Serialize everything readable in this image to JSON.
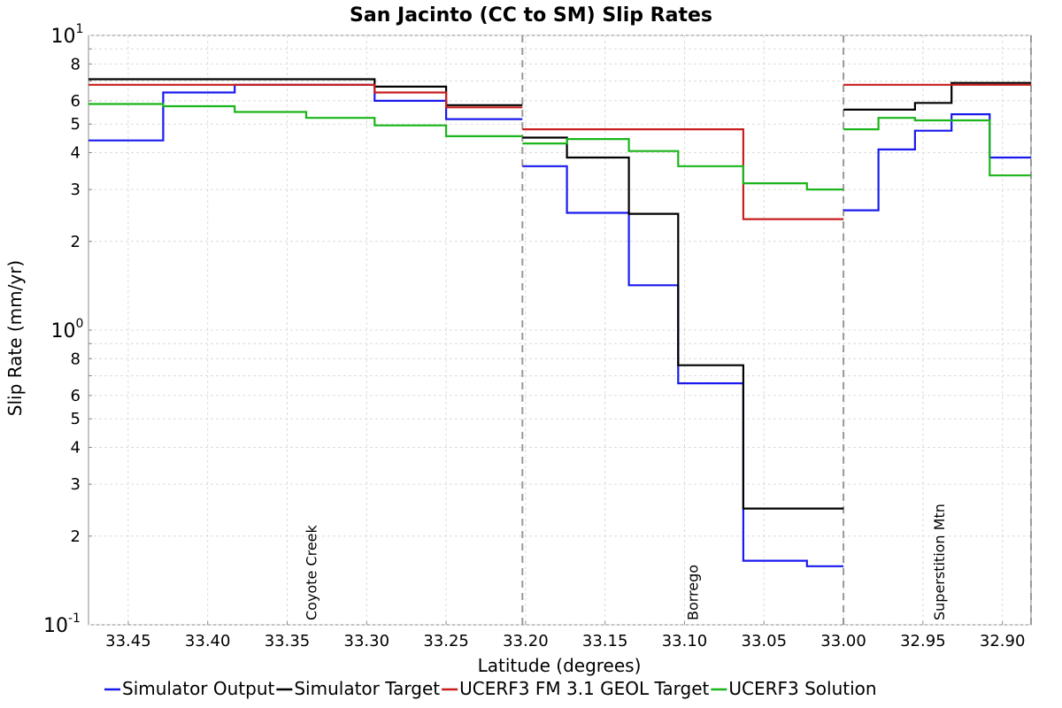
{
  "chart_data": {
    "type": "line",
    "title": "San Jacinto (CC to SM) Slip Rates",
    "xlabel": "Latitude (degrees)",
    "ylabel": "Slip Rate (mm/yr)",
    "x_reversed": true,
    "xlim": [
      33.475,
      32.882
    ],
    "ylim": [
      0.1,
      10
    ],
    "y_scale": "log",
    "grid": true,
    "legend_position": "bottom",
    "x_ticks": [
      "33.45",
      "33.40",
      "33.35",
      "33.30",
      "33.25",
      "33.20",
      "33.15",
      "33.10",
      "33.05",
      "33.00",
      "32.95",
      "32.90"
    ],
    "y_minor_tick_labels": [
      "8",
      "6",
      "5",
      "4",
      "3",
      "2",
      "8",
      "6",
      "5",
      "4",
      "3",
      "2"
    ],
    "y_decade_labels": [
      {
        "base": "10",
        "exp": "1",
        "value": 10
      },
      {
        "base": "10",
        "exp": "0",
        "value": 1
      },
      {
        "base": "10",
        "exp": "-1",
        "value": 0.1
      }
    ],
    "section_boundaries": [
      33.202,
      33.0,
      32.882
    ],
    "section_labels": [
      {
        "text": "Coyote Creek",
        "x": 33.335
      },
      {
        "text": "Borrego",
        "x": 33.095
      },
      {
        "text": "Superstition Mtn",
        "x": 32.94
      }
    ],
    "series": [
      {
        "name": "Simulator Output",
        "color": "#1a1aee",
        "step_edges": [
          33.475,
          33.428,
          33.383,
          33.295,
          33.25,
          33.202,
          33.202,
          33.174,
          33.135,
          33.104,
          33.063,
          33.023,
          33.0,
          33.0,
          32.978,
          32.955,
          32.932,
          32.908,
          32.882
        ],
        "values": [
          4.4,
          6.4,
          6.8,
          6.0,
          5.2,
          null,
          3.6,
          2.5,
          1.42,
          0.66,
          0.165,
          0.158,
          null,
          2.55,
          4.1,
          4.75,
          5.4,
          3.85
        ],
        "note": "values on segments between consecutive step_edges; null = gap between sections"
      },
      {
        "name": "Simulator Target",
        "color": "#000000",
        "step_edges": [
          33.475,
          33.295,
          33.25,
          33.202,
          33.202,
          33.174,
          33.135,
          33.104,
          33.063,
          33.0,
          33.0,
          32.955,
          32.932,
          32.882
        ],
        "values": [
          7.1,
          6.7,
          5.8,
          null,
          4.5,
          3.85,
          2.48,
          0.76,
          0.248,
          null,
          5.6,
          5.9,
          6.9
        ]
      },
      {
        "name": "UCERF3 FM 3.1 GEOL Target",
        "color": "#c81e1e",
        "step_edges": [
          33.475,
          33.295,
          33.25,
          33.202,
          33.202,
          33.063,
          33.0,
          33.0,
          32.882
        ],
        "values": [
          6.8,
          6.4,
          5.7,
          null,
          4.8,
          2.38,
          null,
          6.8
        ]
      },
      {
        "name": "UCERF3 Solution",
        "color": "#1ab51a",
        "step_edges": [
          33.475,
          33.428,
          33.383,
          33.338,
          33.295,
          33.25,
          33.202,
          33.202,
          33.174,
          33.135,
          33.104,
          33.063,
          33.023,
          33.0,
          33.0,
          32.978,
          32.955,
          32.908,
          32.882
        ],
        "values": [
          5.85,
          5.75,
          5.5,
          5.25,
          4.95,
          4.55,
          null,
          4.3,
          4.45,
          4.05,
          3.6,
          3.15,
          3.0,
          null,
          4.8,
          5.25,
          5.15,
          3.35
        ]
      }
    ]
  }
}
